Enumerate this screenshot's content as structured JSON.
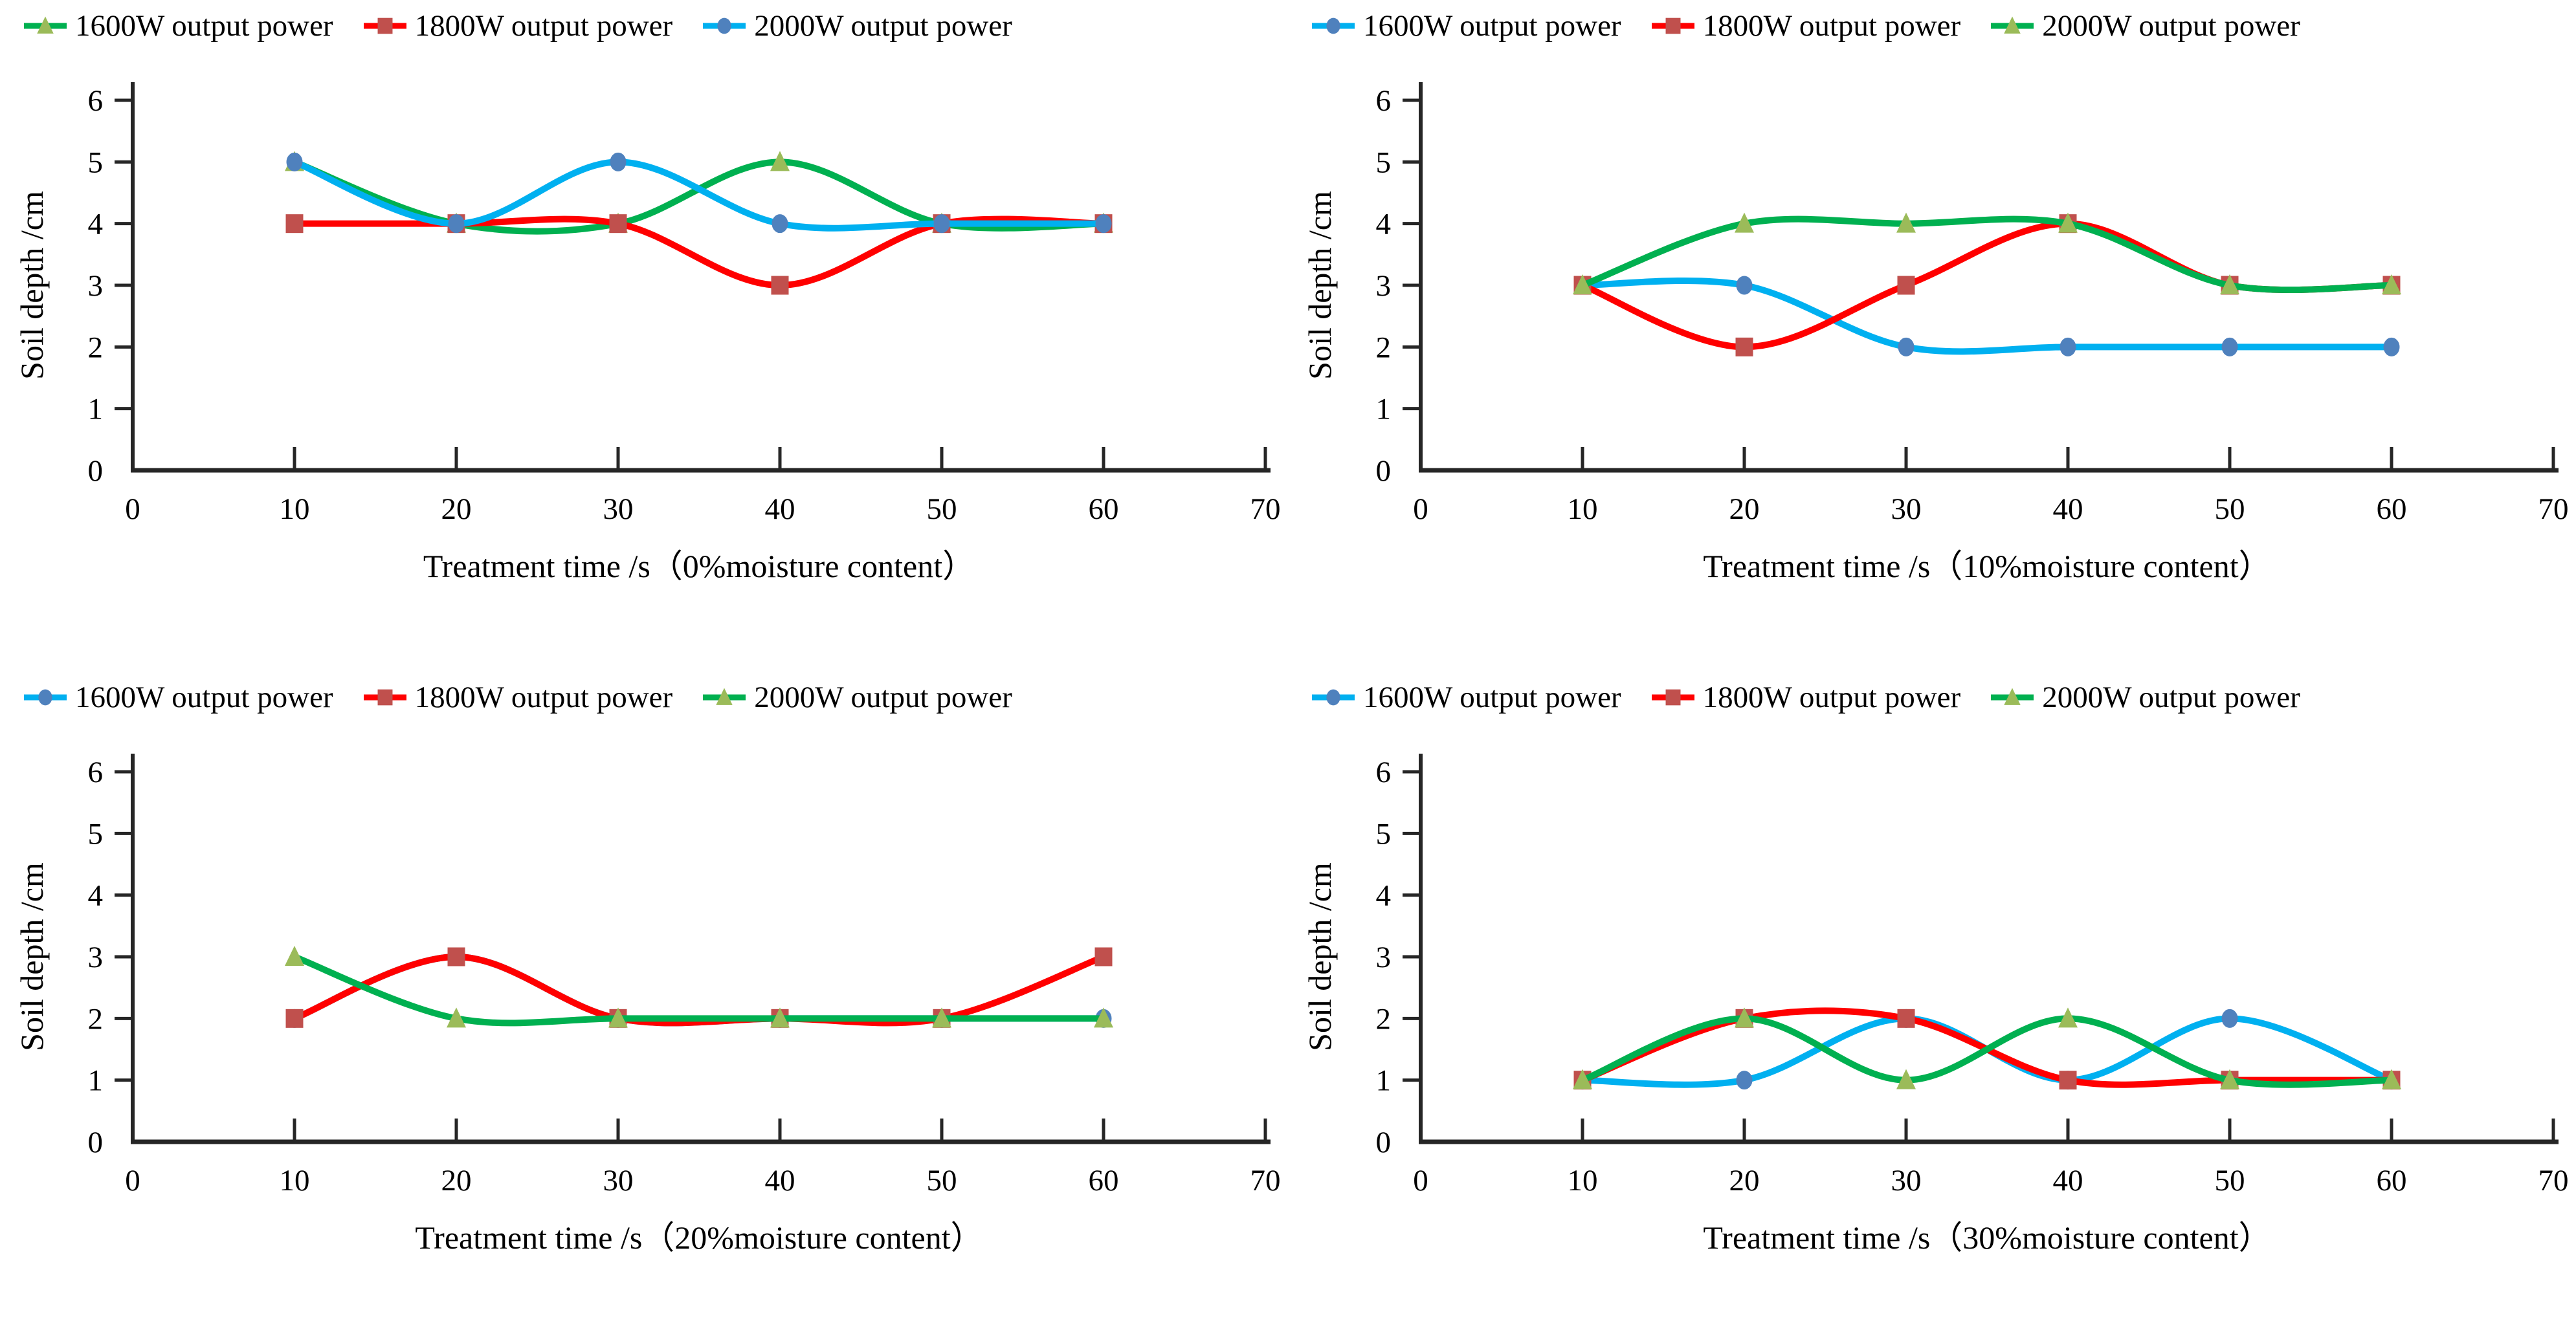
{
  "figure": {
    "background": "#ffffff",
    "axis_color": "#262626",
    "text_color": "#000000"
  },
  "chart_data": [
    {
      "id": "moisture-0",
      "type": "line",
      "x": [
        10,
        20,
        30,
        40,
        50,
        60
      ],
      "series": [
        {
          "name": "1600W output power",
          "values": [
            5,
            4,
            4,
            5,
            4,
            4
          ],
          "line_color": "#00B050",
          "marker": "triangle",
          "marker_color": "#9BBB59"
        },
        {
          "name": "1800W output power",
          "values": [
            4,
            4,
            4,
            3,
            4,
            4
          ],
          "line_color": "#FF0000",
          "marker": "square",
          "marker_color": "#C0504D"
        },
        {
          "name": "2000W output power",
          "values": [
            5,
            4,
            5,
            4,
            4,
            4
          ],
          "line_color": "#00B0F0",
          "marker": "circle",
          "marker_color": "#4F81BD"
        }
      ],
      "xlabel": "Treatment time /s（0%moisture content）",
      "ylabel": "Soil depth /cm",
      "xlim": [
        0,
        70
      ],
      "ylim": [
        0,
        6
      ],
      "xticks": [
        0,
        10,
        20,
        30,
        40,
        50,
        60,
        70
      ],
      "yticks": [
        0,
        1,
        2,
        3,
        4,
        5,
        6
      ],
      "grid": false,
      "smooth": true,
      "legend_position": "top"
    },
    {
      "id": "moisture-10",
      "type": "line",
      "x": [
        10,
        20,
        30,
        40,
        50,
        60
      ],
      "series": [
        {
          "name": "1600W output power",
          "values": [
            3,
            3,
            2,
            2,
            2,
            2
          ],
          "line_color": "#00B0F0",
          "marker": "circle",
          "marker_color": "#4F81BD"
        },
        {
          "name": "1800W output power",
          "values": [
            3,
            2,
            3,
            4,
            3,
            3
          ],
          "line_color": "#FF0000",
          "marker": "square",
          "marker_color": "#C0504D"
        },
        {
          "name": "2000W output power",
          "values": [
            3,
            4,
            4,
            4,
            3,
            3
          ],
          "line_color": "#00B050",
          "marker": "triangle",
          "marker_color": "#9BBB59"
        }
      ],
      "xlabel": "Treatment time /s（10%moisture content）",
      "ylabel": "Soil depth /cm",
      "xlim": [
        0,
        70
      ],
      "ylim": [
        0,
        6
      ],
      "xticks": [
        0,
        10,
        20,
        30,
        40,
        50,
        60,
        70
      ],
      "yticks": [
        0,
        1,
        2,
        3,
        4,
        5,
        6
      ],
      "grid": false,
      "smooth": true,
      "legend_position": "top"
    },
    {
      "id": "moisture-20",
      "type": "line",
      "x": [
        10,
        20,
        30,
        40,
        50,
        60
      ],
      "series": [
        {
          "name": "1600W output power",
          "values": [
            2,
            3,
            2,
            2,
            2,
            2
          ],
          "line_color": "#00B0F0",
          "marker": "circle",
          "marker_color": "#4F81BD"
        },
        {
          "name": "1800W output power",
          "values": [
            2,
            3,
            2,
            2,
            2,
            3
          ],
          "line_color": "#FF0000",
          "marker": "square",
          "marker_color": "#C0504D"
        },
        {
          "name": "2000W output power",
          "values": [
            3,
            2,
            2,
            2,
            2,
            2
          ],
          "line_color": "#00B050",
          "marker": "triangle",
          "marker_color": "#9BBB59"
        }
      ],
      "xlabel": "Treatment time /s（20%moisture content）",
      "ylabel": "Soil depth /cm",
      "xlim": [
        0,
        70
      ],
      "ylim": [
        0,
        6
      ],
      "xticks": [
        0,
        10,
        20,
        30,
        40,
        50,
        60,
        70
      ],
      "yticks": [
        0,
        1,
        2,
        3,
        4,
        5,
        6
      ],
      "grid": false,
      "smooth": true,
      "legend_position": "top"
    },
    {
      "id": "moisture-30",
      "type": "line",
      "x": [
        10,
        20,
        30,
        40,
        50,
        60
      ],
      "series": [
        {
          "name": "1600W output power",
          "values": [
            1,
            1,
            2,
            1,
            2,
            1
          ],
          "line_color": "#00B0F0",
          "marker": "circle",
          "marker_color": "#4F81BD"
        },
        {
          "name": "1800W output power",
          "values": [
            1,
            2,
            2,
            1,
            1,
            1
          ],
          "line_color": "#FF0000",
          "marker": "square",
          "marker_color": "#C0504D"
        },
        {
          "name": "2000W output power",
          "values": [
            1,
            2,
            1,
            2,
            1,
            1
          ],
          "line_color": "#00B050",
          "marker": "triangle",
          "marker_color": "#9BBB59"
        }
      ],
      "xlabel": "Treatment time /s（30%moisture content）",
      "ylabel": "Soil depth /cm",
      "xlim": [
        0,
        70
      ],
      "ylim": [
        0,
        6
      ],
      "xticks": [
        0,
        10,
        20,
        30,
        40,
        50,
        60,
        70
      ],
      "yticks": [
        0,
        1,
        2,
        3,
        4,
        5,
        6
      ],
      "grid": false,
      "smooth": true,
      "legend_position": "top"
    }
  ]
}
